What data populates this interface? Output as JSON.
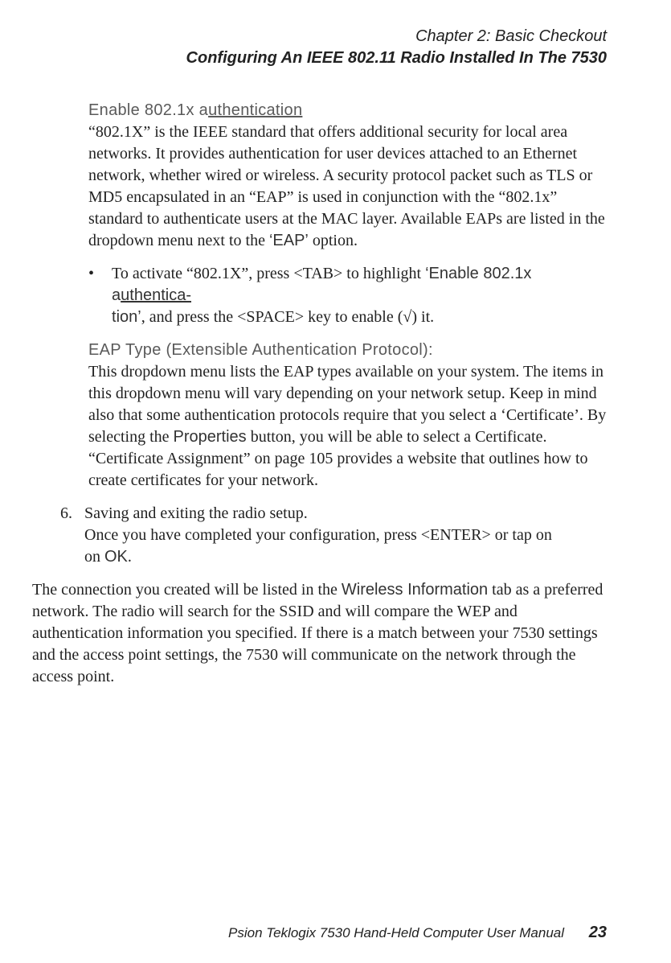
{
  "header": {
    "chapter": "Chapter  2:  Basic Checkout",
    "section": "Configuring An IEEE 802.11 Radio Installed In The 7530"
  },
  "block1": {
    "heading_pre": "Enable 802.1x a",
    "heading_post": "uthentication",
    "body": "“802.1X” is the IEEE standard that offers additional security for local area networks. It provides authentication for user devices attached to an Ethernet network, whether wired or wireless. A security protocol packet such as TLS or MD5 encapsulated in an “EAP” is used in conjunction with the “802.1x” standard to authenticate users at the MAC layer. Available EAPs are listed in the dropdown menu next to the ",
    "eap": "‘EAP’",
    "body_tail": " option."
  },
  "bullet": {
    "mark": "•",
    "pre": "To activate “802.1X”, press <TAB> to highlight ",
    "em1a": "‘Enable 802.1x a",
    "em1b": "uthentica-",
    "em2": "tion’",
    "mid": ", and press the <SPACE> key to enable (",
    "root": "√",
    "post": ") it."
  },
  "block2": {
    "heading": "EAP Type (Extensible Authentication Protocol):",
    "body_a": "This dropdown menu lists the EAP types available on your system. The items in this dropdown menu will vary depending on your network setup. Keep in mind also that some authentication protocols require that you select a ‘Certificate’. By selecting the ",
    "properties": "Properties",
    "body_b": " button, you will be able to select a Certificate. “Certificate Assignment” on page 105 provides a website that outlines how to create certificates for your network."
  },
  "step6": {
    "num": "6.",
    "line1": "Saving and exiting the radio setup.",
    "line2a": "Once you have completed your configuration, press <ENTER> or tap on ",
    "ok": "OK",
    "line2b": "."
  },
  "final": {
    "a": "The connection you created will be listed in the ",
    "wi": "Wireless Information",
    "b": " tab as a preferred network. The radio will search for the SSID and will compare the WEP and authentication information you specified. If there is a match between your 7530 settings and the access point settings, the 7530 will communicate on the network through the access point."
  },
  "footer": {
    "text": "Psion Teklogix 7530 Hand-Held Computer User Manual",
    "page": "23"
  }
}
